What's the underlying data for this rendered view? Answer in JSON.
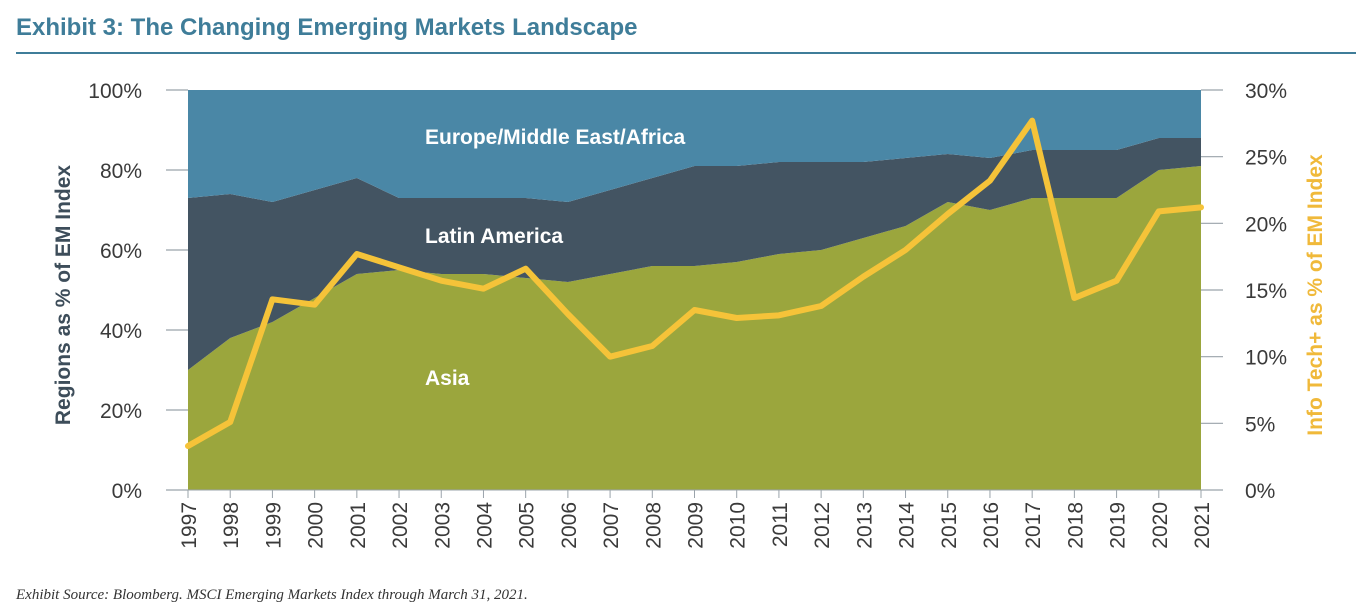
{
  "title": "Exhibit 3: The Changing Emerging Markets Landscape",
  "source": "Exhibit Source: Bloomberg. MSCI Emerging Markets Index through March 31, 2021.",
  "colors": {
    "title": "#3f7d99",
    "europe": "#4a87a6",
    "latam": "#435462",
    "asia": "#9ba63d",
    "infotech": "#f5c339",
    "axis_left": "#3d4d5a",
    "axis_right": "#f0b93a"
  },
  "chart_data": {
    "type": "area",
    "stacked": true,
    "categories": [
      "1997",
      "1998",
      "1999",
      "2000",
      "2001",
      "2002",
      "2003",
      "2004",
      "2005",
      "2006",
      "2007",
      "2008",
      "2009",
      "2010",
      "2011",
      "2012",
      "2013",
      "2014",
      "2015",
      "2016",
      "2017",
      "2018",
      "2019",
      "2020",
      "2021"
    ],
    "series": [
      {
        "name": "Asia",
        "axis": "left",
        "values": [
          30,
          38,
          42,
          48,
          54,
          55,
          54,
          54,
          53,
          52,
          54,
          56,
          56,
          57,
          59,
          60,
          63,
          66,
          72,
          70,
          73,
          73,
          73,
          80,
          81
        ]
      },
      {
        "name": "Latin America",
        "axis": "left",
        "values": [
          43,
          36,
          30,
          27,
          24,
          18,
          19,
          19,
          20,
          20,
          21,
          22,
          25,
          24,
          23,
          22,
          19,
          17,
          12,
          13,
          12,
          12,
          12,
          8,
          7
        ]
      },
      {
        "name": "Europe/Middle East/Africa",
        "axis": "left",
        "values": [
          27,
          26,
          28,
          25,
          22,
          27,
          27,
          27,
          27,
          28,
          25,
          22,
          19,
          19,
          18,
          18,
          18,
          17,
          16,
          17,
          15,
          15,
          15,
          12,
          12
        ]
      },
      {
        "type": "line",
        "axis": "right",
        "values": [
          3.3,
          5.1,
          14.3,
          13.9,
          17.7,
          16.7,
          15.7,
          15.1,
          16.6,
          13.2,
          10.0,
          10.8,
          13.5,
          12.9,
          13.1,
          13.8,
          16.0,
          18.0,
          20.7,
          23.2,
          27.7,
          14.4,
          15.7,
          20.9,
          21.2
        ]
      }
    ],
    "ylabel": "Regions as % of EM Index",
    "ylabel_right": "Info Tech+ as % of EM Index",
    "ylim": [
      0,
      100
    ],
    "ylim_right": [
      0,
      30
    ],
    "yticks": [
      "0%",
      "20%",
      "40%",
      "60%",
      "80%",
      "100%"
    ],
    "yticks_right": [
      "0%",
      "5%",
      "10%",
      "15%",
      "20%",
      "25%",
      "30%"
    ],
    "area_labels": [
      "Europe/Middle East/Africa",
      "Latin America",
      "Asia"
    ],
    "grid": false,
    "legend": "none"
  }
}
